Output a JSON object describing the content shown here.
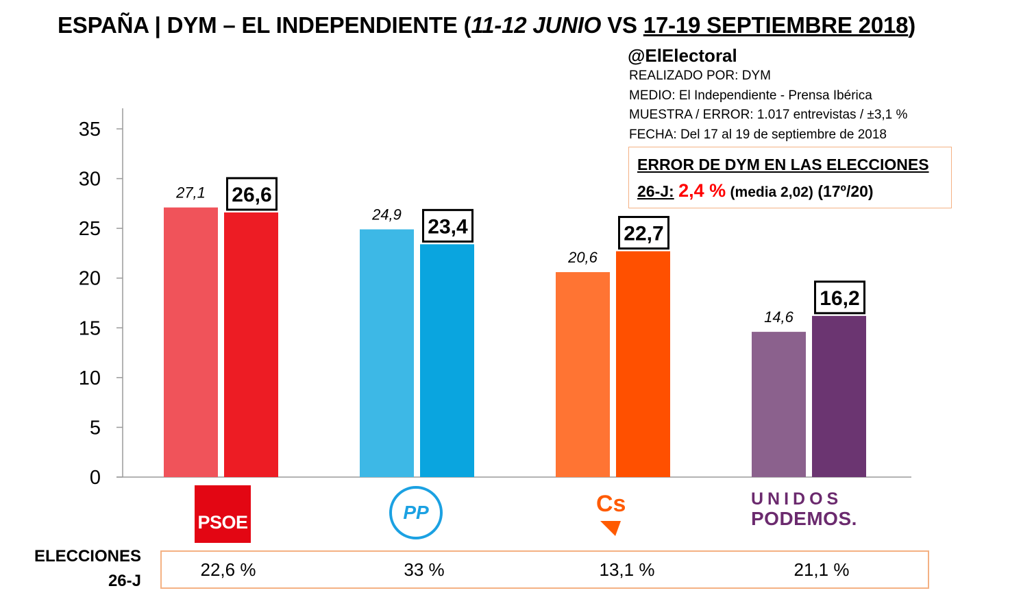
{
  "header": {
    "title_main": "ESPAÑA | DYM – EL INDEPENDIENTE (",
    "title_italic": "11-12 JUNIO",
    "title_vs": " VS ",
    "title_underlined": "17-19 SEPTIEMBRE 2018",
    "title_close": ")",
    "handle": "@ElElectoral",
    "meta": [
      "REALIZADO POR: DYM",
      "MEDIO: El Independiente - Prensa Ibérica",
      "MUESTRA / ERROR: 1.017 entrevistas / ±3,1 %",
      "FECHA: Del 17 al 19 de septiembre de 2018"
    ]
  },
  "error_box": {
    "line1": "ERROR DE DYM EN LAS ELECCIONES",
    "label": "26-J:",
    "value": "2,4 %",
    "media": "(media 2,02)",
    "rank": "(17º/20)"
  },
  "chart_data": {
    "type": "bar",
    "categories": [
      "PSOE",
      "PP",
      "Cs",
      "UNIDOS PODEMOS"
    ],
    "series": [
      {
        "values": [
          27.1,
          24.9,
          20.6,
          14.6
        ],
        "labels": [
          "27,1",
          "24,9",
          "20,6",
          "14,6"
        ],
        "colors": [
          "#f0535a",
          "#3db8e6",
          "#ff7433",
          "#8b618d"
        ]
      },
      {
        "values": [
          26.6,
          23.4,
          22.7,
          16.2
        ],
        "labels": [
          "26,6",
          "23,4",
          "22,7",
          "16,2"
        ],
        "colors": [
          "#ed1c24",
          "#0aa5df",
          "#ff5000",
          "#6b3571"
        ]
      }
    ],
    "yticks": [
      0,
      5,
      10,
      15,
      20,
      25,
      30,
      35
    ],
    "ylim": [
      0,
      35
    ],
    "grid": false
  },
  "logos": {
    "psoe": "PSOE",
    "pp": "PP",
    "cs": "Cs",
    "up_line1": "UNIDOS",
    "up_line2": "PODEMOS."
  },
  "elections": {
    "label_line1": "ELECCIONES",
    "label_line2": "26-J",
    "values": [
      "22,6 %",
      "33 %",
      "13,1 %",
      "21,1 %"
    ]
  }
}
